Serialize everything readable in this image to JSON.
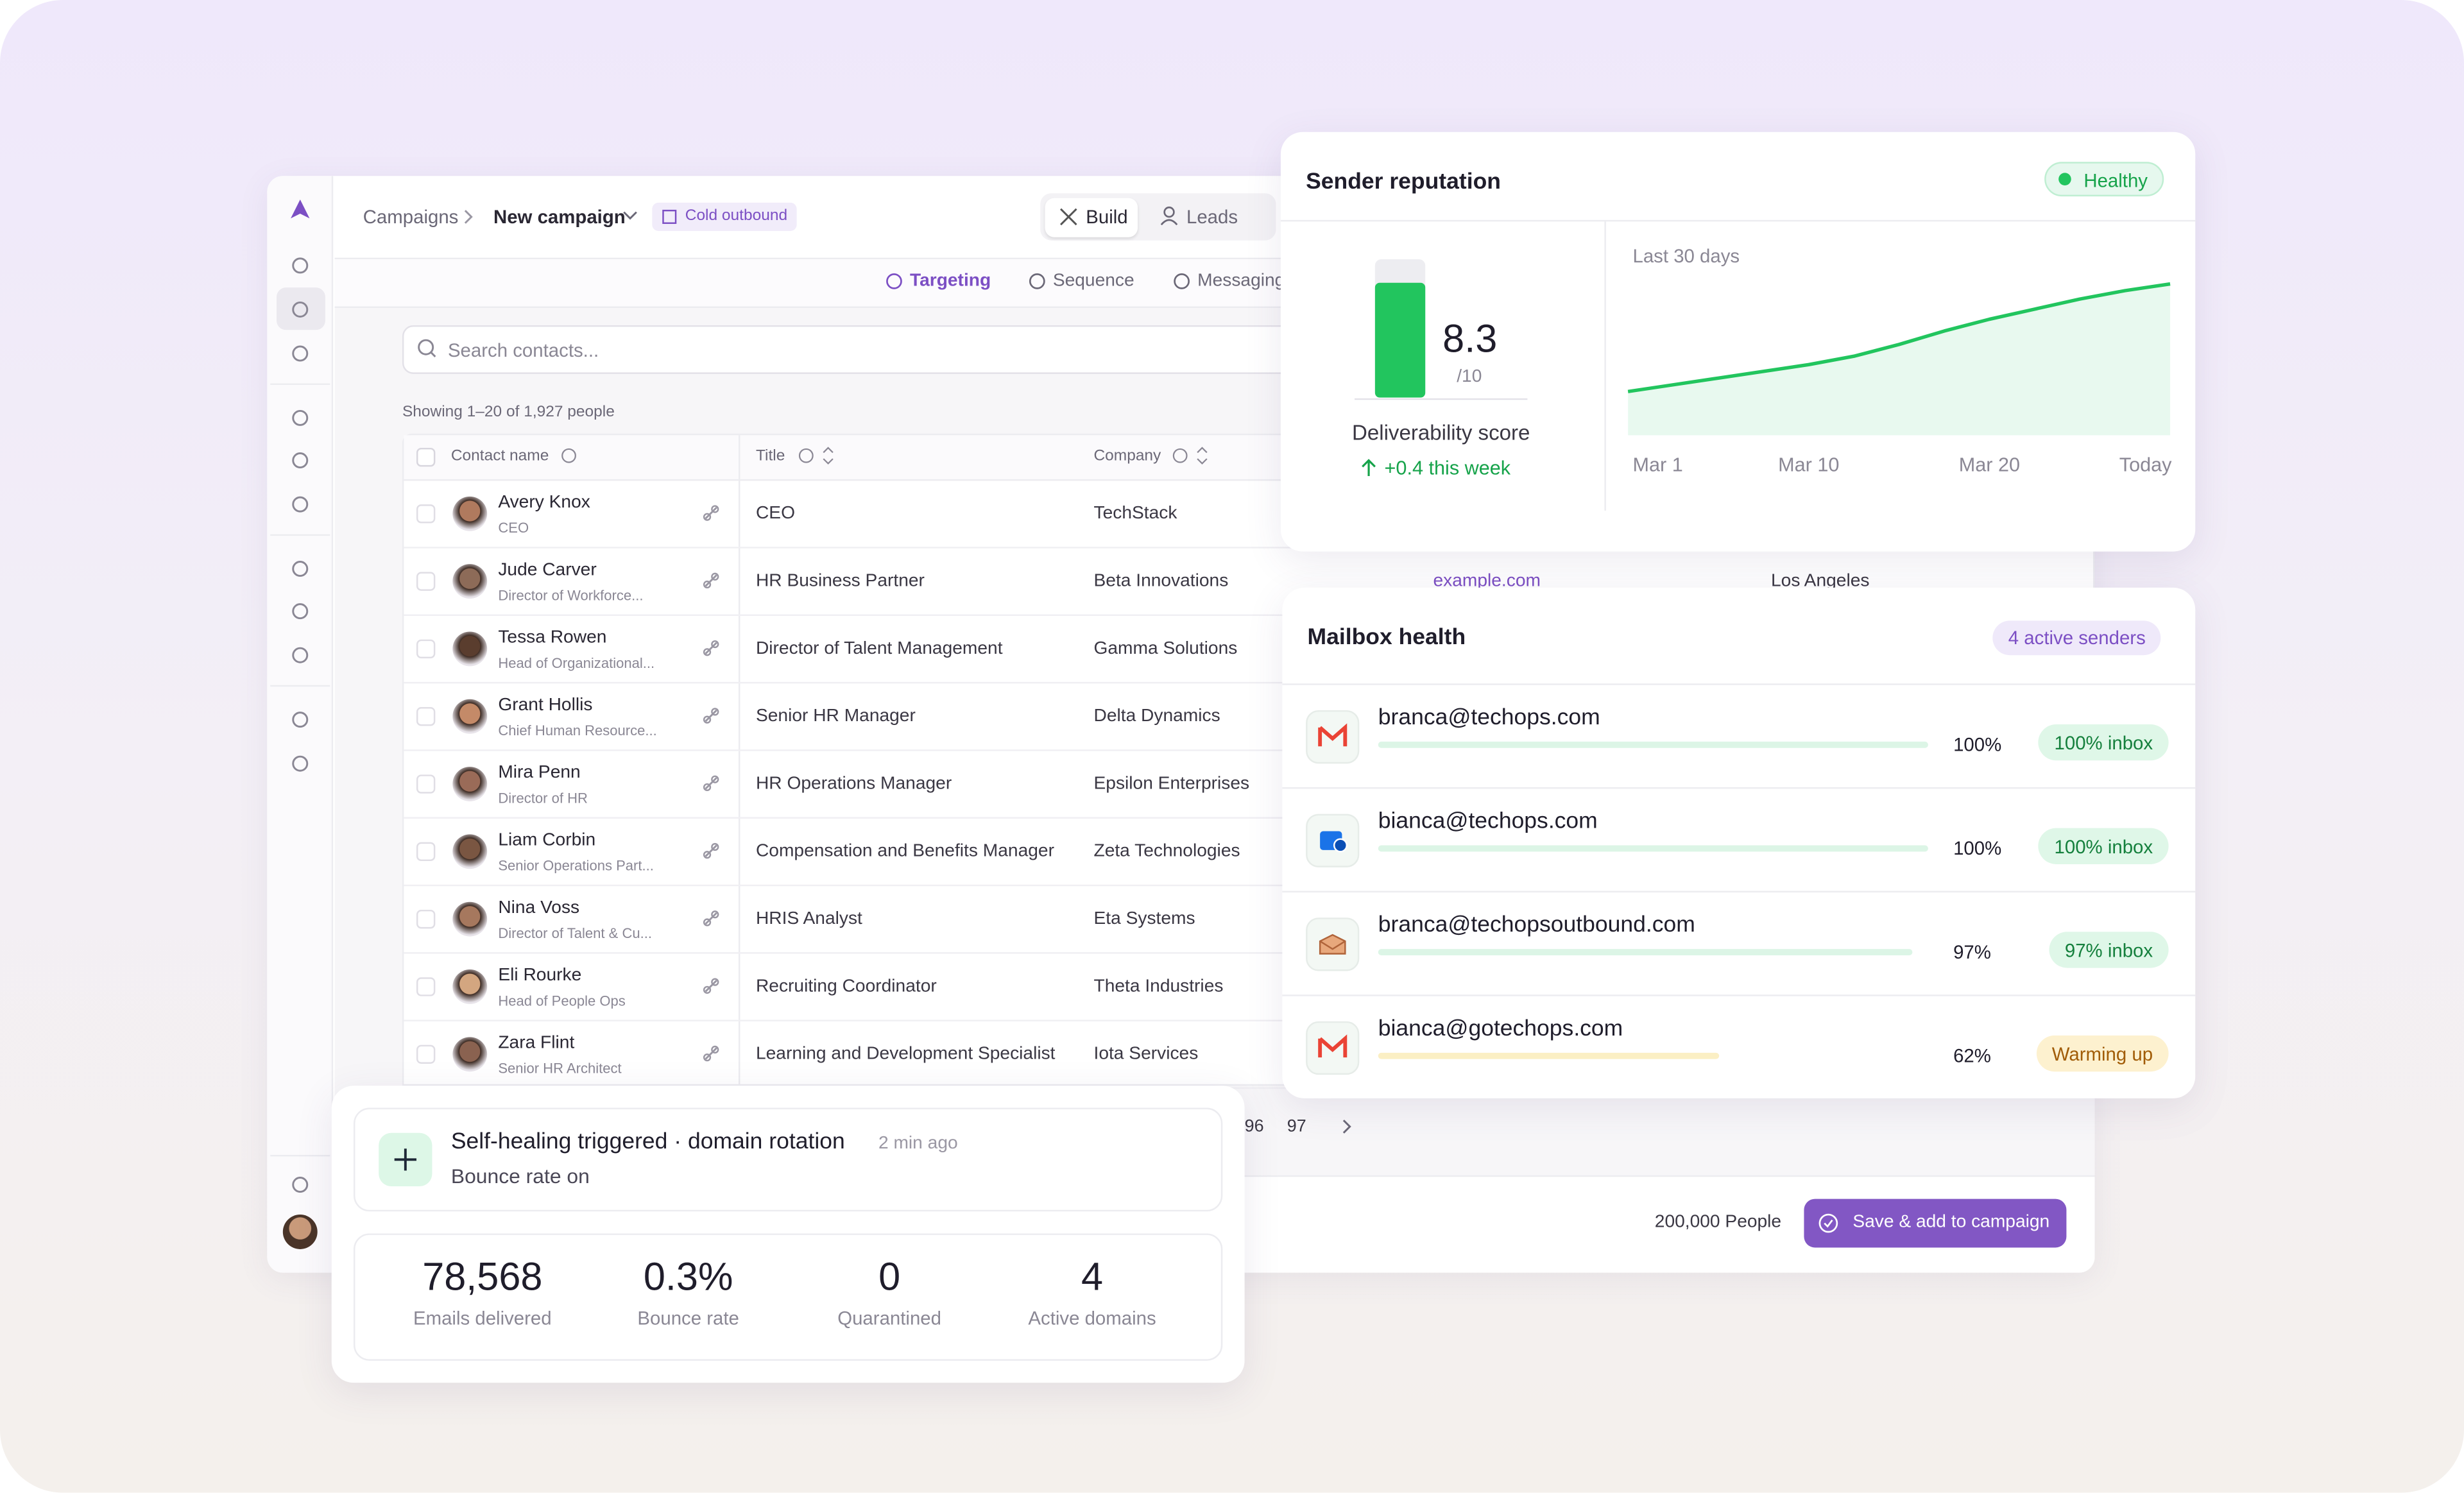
{
  "breadcrumb": [
    "Campaigns",
    "New campaign"
  ],
  "tag": "Cold outbound",
  "tabs": [
    "Build",
    "Leads"
  ],
  "subtabs": [
    "Targeting",
    "Sequence",
    "Messaging"
  ],
  "search_placeholder": "Search contacts...",
  "showing": "Showing 1–20 of 1,927 people",
  "table": {
    "columns": [
      "Contact name",
      "Title",
      "Company"
    ],
    "rows": [
      {
        "name": "Avery Knox",
        "role": "CEO",
        "title": "CEO",
        "company": "TechStack"
      },
      {
        "name": "Jude Carver",
        "role": "Director of Workforce...",
        "title": "HR Business Partner",
        "company": "Beta Innovations",
        "website": "example.com",
        "location": "Los Angeles"
      },
      {
        "name": "Tessa Rowen",
        "role": "Head of Organizational...",
        "title": "Director of Talent Management",
        "company": "Gamma Solutions"
      },
      {
        "name": "Grant Hollis",
        "role": "Chief Human Resource...",
        "title": "Senior HR Manager",
        "company": "Delta Dynamics"
      },
      {
        "name": "Mira Penn",
        "role": "Director of HR",
        "title": "HR Operations Manager",
        "company": "Epsilon Enterprises"
      },
      {
        "name": "Liam Corbin",
        "role": "Senior Operations Part...",
        "title": "Compensation and Benefits Manager",
        "company": "Zeta Technologies"
      },
      {
        "name": "Nina Voss",
        "role": "Director of Talent & Cu...",
        "title": "HRIS Analyst",
        "company": "Eta Systems"
      },
      {
        "name": "Eli Rourke",
        "role": "Head of People Ops",
        "title": "Recruiting Coordinator",
        "company": "Theta Industries"
      },
      {
        "name": "Zara Flint",
        "role": "Senior HR Architect",
        "title": "Learning and Development Specialist",
        "company": "Iota Services"
      }
    ]
  },
  "pagination": [
    "96",
    "97"
  ],
  "footer": {
    "count": "200,000 People",
    "button": "Save & add to campaign"
  },
  "alert": {
    "title": "Self-healing triggered · domain rotation",
    "time": "2 min ago",
    "text": "Bounce rate on"
  },
  "stats": [
    {
      "value": "78,568",
      "label": "Emails delivered"
    },
    {
      "value": "0.3%",
      "label": "Bounce rate"
    },
    {
      "value": "0",
      "label": "Quarantined"
    },
    {
      "value": "4",
      "label": "Active domains"
    }
  ],
  "reputation": {
    "title": "Sender reputation",
    "status": "Healthy",
    "score": 8.3,
    "score_max": {
      "value": 10,
      "label": "/10"
    },
    "score_label": "Deliverability score",
    "change": "+0.4 this week",
    "period": "Last 30 days",
    "trend": {
      "x_labels": [
        "Mar 1",
        "Mar 10",
        "Mar 20",
        "Today"
      ],
      "values": [
        26,
        30,
        34,
        38,
        42,
        47,
        54,
        62,
        69,
        75,
        81,
        86,
        90
      ],
      "ylim": [
        0,
        100
      ],
      "color": "#22c55e"
    }
  },
  "mailbox": {
    "title": "Mailbox health",
    "badge": "4 active senders",
    "rows": [
      {
        "email": "branca@techops.com",
        "value": 100,
        "value_label": "100%",
        "status": "100% inbox",
        "tone": "green"
      },
      {
        "email": "bianca@techops.com",
        "value": 100,
        "value_label": "100%",
        "status": "100% inbox",
        "tone": "green"
      },
      {
        "email": "branca@techopsoutbound.com",
        "value": 97,
        "value_label": "97%",
        "status": "97% inbox",
        "tone": "green"
      },
      {
        "email": "bianca@gotechops.com",
        "value": 62,
        "value_label": "62%",
        "status": "Warming up",
        "tone": "amber"
      }
    ]
  }
}
